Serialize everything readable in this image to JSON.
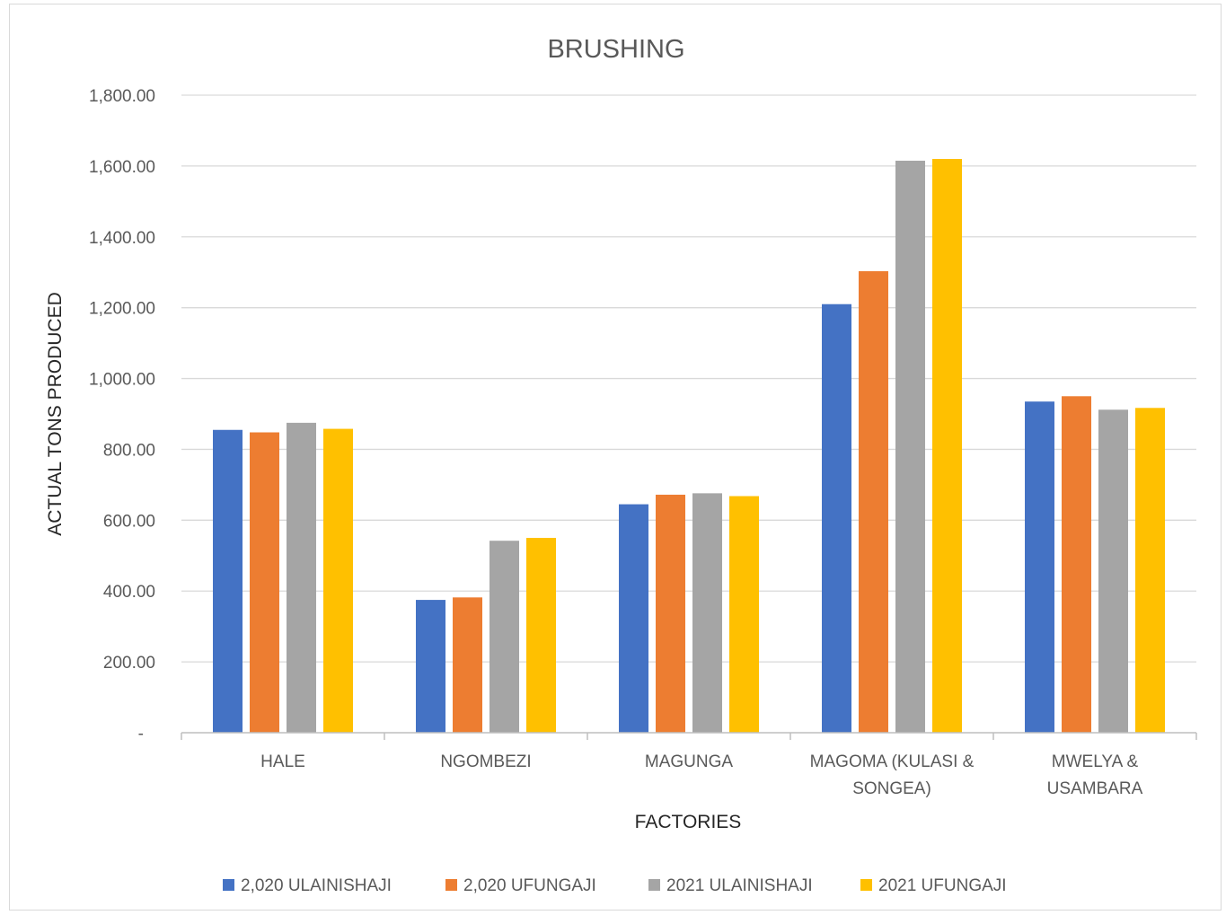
{
  "chart_data": {
    "type": "bar",
    "title": "BRUSHING",
    "xlabel": "FACTORIES",
    "ylabel": "ACTUAL TONS PRODUCED",
    "ylim": [
      0,
      1800
    ],
    "yticks": [
      "-",
      "200.00",
      "400.00",
      "600.00",
      "800.00",
      "1,000.00",
      "1,200.00",
      "1,400.00",
      "1,600.00",
      "1,800.00"
    ],
    "grid": true,
    "legend_position": "bottom",
    "categories": [
      [
        "HALE"
      ],
      [
        "NGOMBEZI"
      ],
      [
        "MAGUNGA"
      ],
      [
        "MAGOMA (KULASI &",
        "SONGEA)"
      ],
      [
        "MWELYA &",
        "USAMBARA"
      ]
    ],
    "series": [
      {
        "name": "2,020  ULAINISHAJI",
        "color": "#4472c4",
        "values": [
          855,
          375,
          645,
          1210,
          935
        ]
      },
      {
        "name": "2,020  UFUNGAJI",
        "color": "#ed7d31",
        "values": [
          848,
          382,
          672,
          1303,
          950
        ]
      },
      {
        "name": "2021 ULAINISHAJI",
        "color": "#a5a5a5",
        "values": [
          875,
          542,
          676,
          1615,
          912
        ]
      },
      {
        "name": "2021 UFUNGAJI",
        "color": "#ffc000",
        "values": [
          858,
          550,
          668,
          1620,
          917
        ]
      }
    ]
  }
}
